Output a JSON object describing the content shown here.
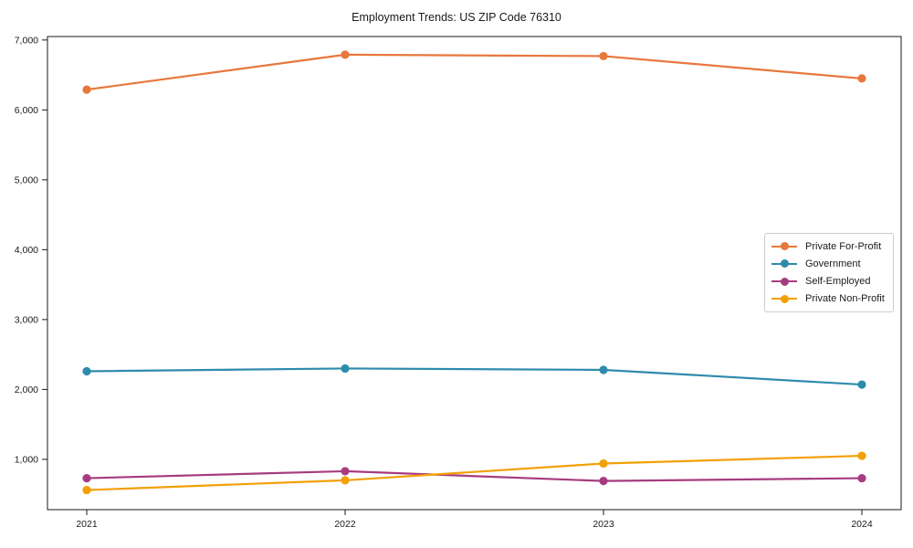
{
  "title": "Employment Trends: US ZIP Code 76310",
  "chart_data": {
    "type": "line",
    "title": "Employment Trends: US ZIP Code 76310",
    "x": [
      2021,
      2022,
      2023,
      2024
    ],
    "x_tick_labels": [
      "2021",
      "2022",
      "2023",
      "2024"
    ],
    "y_ticks": [
      1000,
      2000,
      3000,
      4000,
      5000,
      6000,
      7000
    ],
    "y_tick_labels": [
      "1,000",
      "2,000",
      "3,000",
      "4,000",
      "5,000",
      "6,000",
      "7,000"
    ],
    "ylim": [
      280,
      7050
    ],
    "xlabel": "",
    "ylabel": "",
    "grid": false,
    "legend_position": "center right",
    "series": [
      {
        "name": "Private For-Profit",
        "color": "#E8773C",
        "values": [
          6290,
          6790,
          6770,
          6450
        ]
      },
      {
        "name": "Government",
        "color": "#2E8BAB",
        "values": [
          2260,
          2300,
          2280,
          2070
        ]
      },
      {
        "name": "Self-Employed",
        "color": "#A63C80",
        "values": [
          730,
          830,
          690,
          730
        ]
      },
      {
        "name": "Private Non-Profit",
        "color": "#F2A007",
        "values": [
          560,
          700,
          940,
          1050
        ]
      }
    ],
    "axis_color": "#1a1a1a",
    "line_width": 2.2,
    "marker_radius": 4.6
  }
}
